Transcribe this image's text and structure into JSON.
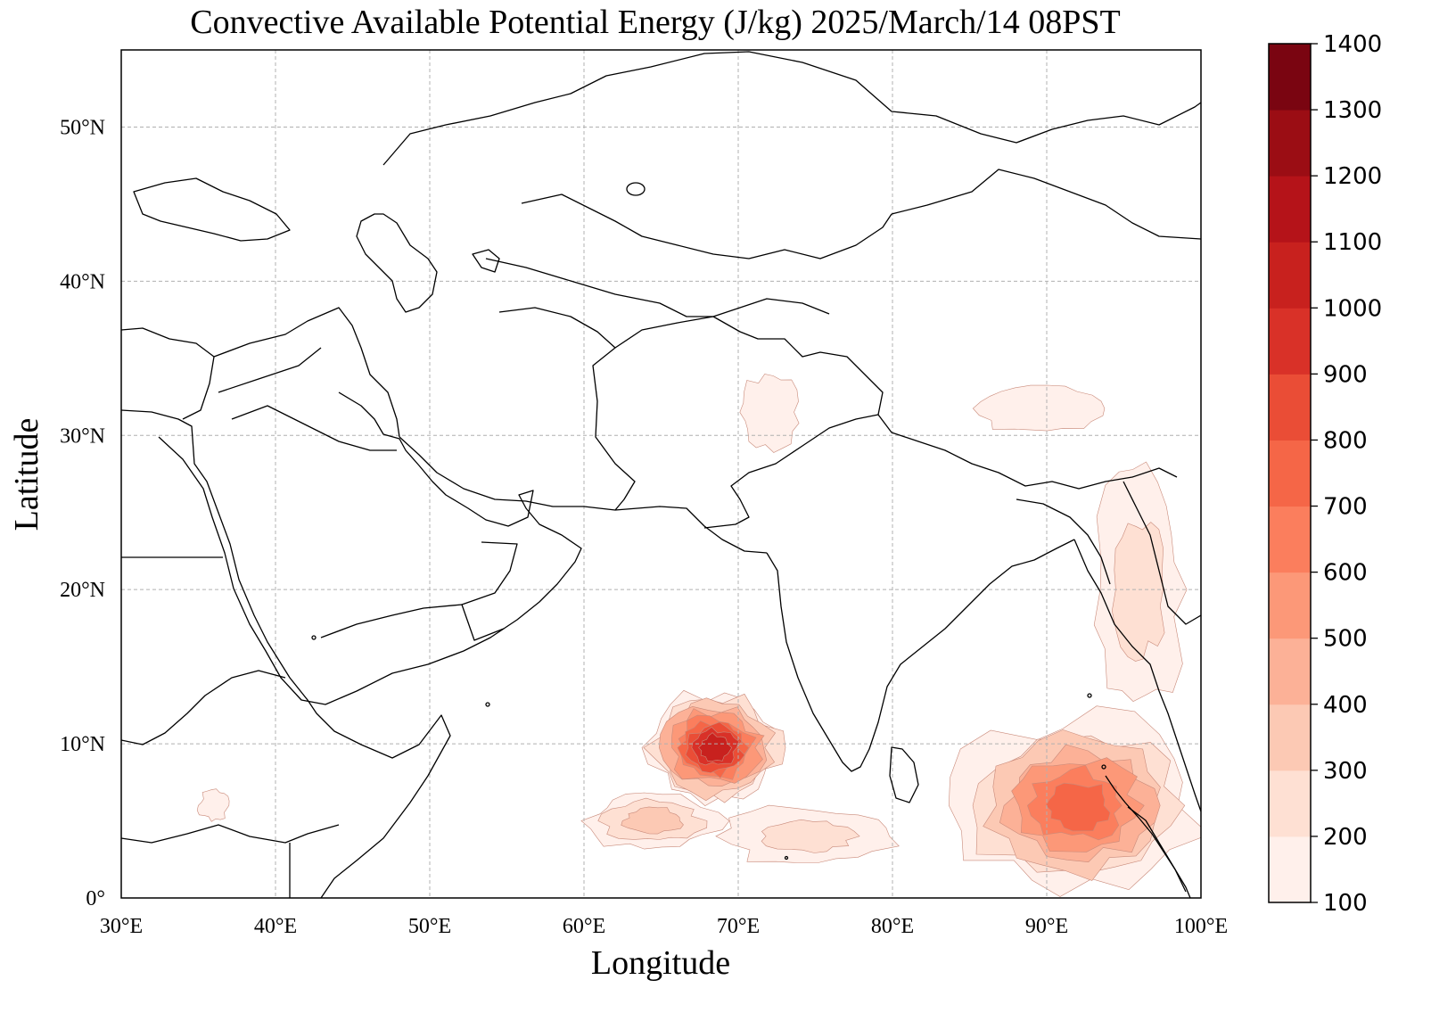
{
  "title": "Convective Available Potential Energy (J/kg)  2025/March/14 08PST",
  "xlabel": "Longitude",
  "ylabel": "Latitude",
  "map": {
    "lon_range": [
      30,
      100
    ],
    "lat_range": [
      0,
      55
    ],
    "lon_ticks": [
      "30°E",
      "40°E",
      "50°E",
      "60°E",
      "70°E",
      "80°E",
      "90°E",
      "100°E"
    ],
    "lat_ticks": [
      "0°",
      "10°N",
      "20°N",
      "30°N",
      "40°N",
      "50°N"
    ],
    "lon_tick_values": [
      30,
      40,
      50,
      60,
      70,
      80,
      90,
      100
    ],
    "lat_tick_values": [
      0,
      10,
      20,
      30,
      40,
      50
    ],
    "gridlines": true
  },
  "colorbar": {
    "levels": [
      "100",
      "200",
      "300",
      "400",
      "500",
      "600",
      "700",
      "800",
      "900",
      "1000",
      "1100",
      "1200",
      "1300",
      "1400"
    ],
    "level_values": [
      100,
      200,
      300,
      400,
      500,
      600,
      700,
      800,
      900,
      1000,
      1100,
      1200,
      1300,
      1400
    ],
    "colors": [
      "#fff0eb",
      "#fee0d3",
      "#fcc9b4",
      "#fcb197",
      "#fc9878",
      "#fb7e5d",
      "#f56647",
      "#ea4d36",
      "#d93128",
      "#c8211e",
      "#b51319",
      "#9b0d14",
      "#7a0511"
    ],
    "placement": "right"
  },
  "chart_data": {
    "type": "heatmap",
    "variable": "CAPE",
    "units": "J/kg",
    "x_range": [
      30,
      100
    ],
    "y_range": [
      0,
      55
    ],
    "regions": [
      {
        "lon": [
          64,
          73
        ],
        "lat": [
          6,
          13.5
        ],
        "max_level": 1100
      },
      {
        "lon": [
          60,
          69
        ],
        "lat": [
          3,
          7
        ],
        "max_level": 400
      },
      {
        "lon": [
          69,
          80
        ],
        "lat": [
          2,
          6
        ],
        "max_level": 300
      },
      {
        "lon": [
          84,
          100
        ],
        "lat": [
          0,
          12
        ],
        "max_level": 800
      },
      {
        "lon": [
          93,
          99
        ],
        "lat": [
          12,
          28
        ],
        "max_level": 300
      },
      {
        "lon": [
          85,
          94
        ],
        "lat": [
          30,
          33.5
        ],
        "max_level": 200
      },
      {
        "lon": [
          70,
          74
        ],
        "lat": [
          29,
          34
        ],
        "max_level": 200
      },
      {
        "lon": [
          35,
          37
        ],
        "lat": [
          5,
          7
        ],
        "max_level": 200
      }
    ]
  }
}
